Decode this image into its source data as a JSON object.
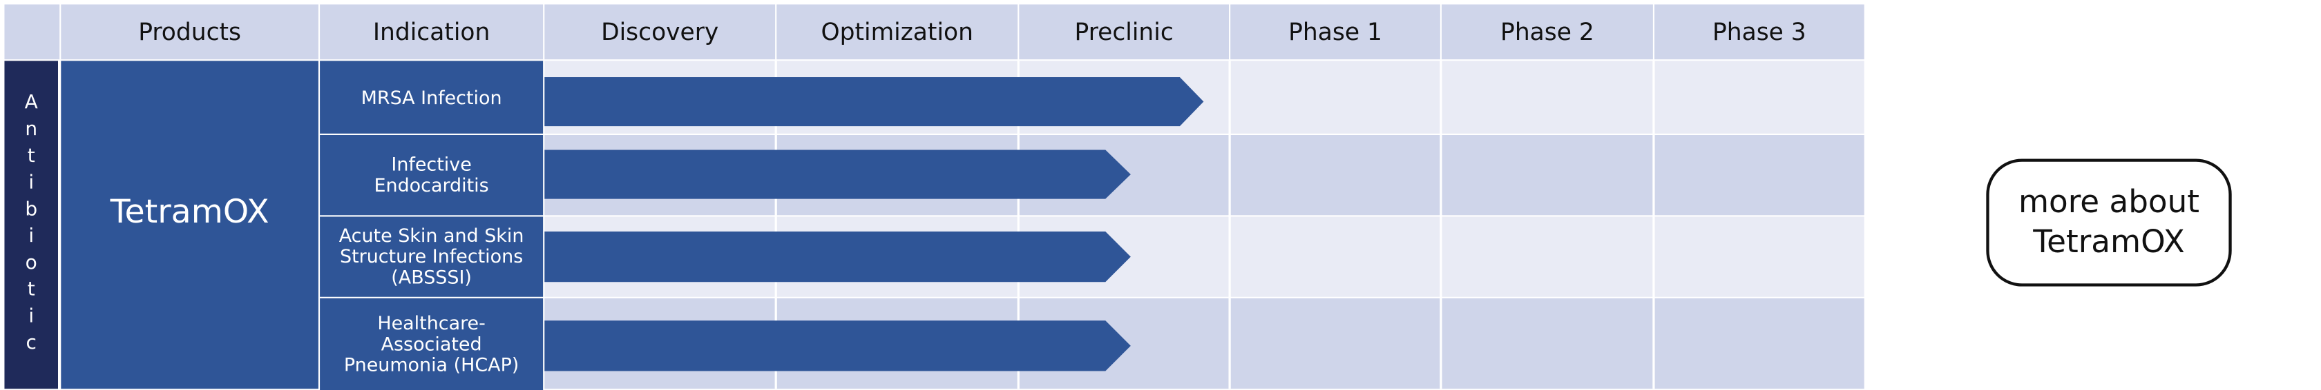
{
  "header": {
    "columns": [
      "Products",
      "Indication",
      "Discovery",
      "Optimization",
      "Preclinic",
      "Phase 1",
      "Phase 2",
      "Phase 3"
    ]
  },
  "category": "Antibiotic",
  "product": "TetramOX",
  "indications": [
    "MRSA Infection",
    "Infective Endocarditis",
    "Acute Skin and Skin Structure Infections (ABSSSI)",
    "Healthcare-Associated Pneumonia (HCAP)"
  ],
  "button": "more about TetramOX"
}
